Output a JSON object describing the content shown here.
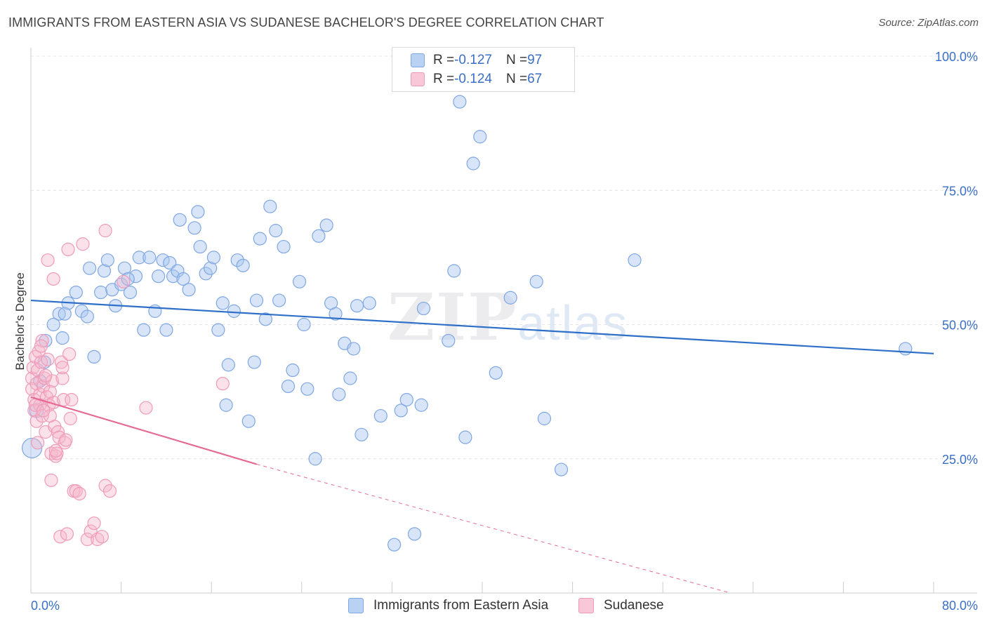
{
  "title": "IMMIGRANTS FROM EASTERN ASIA VS SUDANESE BACHELOR'S DEGREE CORRELATION CHART",
  "source": "Source: ZipAtlas.com",
  "watermark": {
    "zip": "ZIP",
    "atlas": "atlas"
  },
  "legend": {
    "items": [
      {
        "r_label": "R = ",
        "r_value": "-0.127",
        "n_label": "N = ",
        "n_value": "97",
        "color": "#a9c6f0"
      },
      {
        "r_label": "R = ",
        "r_value": "-0.124",
        "n_label": "N = ",
        "n_value": "67",
        "color": "#f6b6cb"
      }
    ]
  },
  "chart_data": {
    "type": "scatter",
    "xlabel": "",
    "ylabel": "Bachelor's Degree",
    "xlim": [
      0,
      80
    ],
    "ylim": [
      0,
      100
    ],
    "x_tick_labels": [
      "0.0%",
      "80.0%"
    ],
    "y_tick_labels": [
      "25.0%",
      "50.0%",
      "75.0%",
      "100.0%"
    ],
    "y_tick_values": [
      25,
      50,
      75,
      100
    ],
    "grid": true,
    "legend_position": "bottom",
    "series": [
      {
        "name": "Immigrants from Eastern Asia",
        "color": "#7fa7e3",
        "line_color": "#2e6fc9",
        "trend": {
          "x": [
            0,
            80
          ],
          "y": [
            54.5,
            44.6
          ]
        },
        "points": [
          [
            0.1,
            27.0,
            14
          ],
          [
            0.5,
            34.0,
            10
          ],
          [
            0.8,
            39.5,
            9
          ],
          [
            1.2,
            43.0,
            9
          ],
          [
            1.3,
            47.0,
            9
          ],
          [
            2.0,
            50.0,
            9
          ],
          [
            2.5,
            52.0,
            9
          ],
          [
            2.8,
            47.5,
            9
          ],
          [
            3.3,
            54.0,
            9
          ],
          [
            4.0,
            56.0,
            9
          ],
          [
            4.5,
            52.5,
            9
          ],
          [
            5.0,
            51.5,
            9
          ],
          [
            5.2,
            60.5,
            9
          ],
          [
            5.6,
            44.0,
            9
          ],
          [
            6.2,
            56.0,
            9
          ],
          [
            6.5,
            60.0,
            9
          ],
          [
            6.8,
            62.0,
            9
          ],
          [
            7.2,
            56.5,
            9
          ],
          [
            7.5,
            53.5,
            9
          ],
          [
            8.0,
            57.5,
            9
          ],
          [
            8.3,
            60.5,
            9
          ],
          [
            8.8,
            56.0,
            9
          ],
          [
            9.3,
            59.0,
            9
          ],
          [
            9.6,
            62.5,
            9
          ],
          [
            10.0,
            49.0,
            9
          ],
          [
            10.5,
            62.5,
            9
          ],
          [
            11.0,
            52.5,
            9
          ],
          [
            11.3,
            59.0,
            9
          ],
          [
            11.7,
            62.0,
            9
          ],
          [
            12.0,
            49.0,
            9
          ],
          [
            12.3,
            61.5,
            9
          ],
          [
            12.6,
            59.0,
            9
          ],
          [
            13.0,
            60.0,
            9
          ],
          [
            13.2,
            69.5,
            9
          ],
          [
            13.5,
            58.5,
            9
          ],
          [
            14.0,
            56.5,
            9
          ],
          [
            14.5,
            68.0,
            9
          ],
          [
            14.8,
            71.0,
            9
          ],
          [
            15.0,
            64.5,
            9
          ],
          [
            15.5,
            59.5,
            9
          ],
          [
            15.9,
            60.5,
            9
          ],
          [
            16.2,
            62.5,
            9
          ],
          [
            16.6,
            49.0,
            9
          ],
          [
            17.0,
            54.0,
            9
          ],
          [
            17.5,
            42.5,
            9
          ],
          [
            18.0,
            52.5,
            9
          ],
          [
            18.3,
            62.0,
            9
          ],
          [
            18.8,
            61.0,
            9
          ],
          [
            19.3,
            32.0,
            9
          ],
          [
            19.8,
            43.0,
            9
          ],
          [
            20.0,
            54.5,
            9
          ],
          [
            20.3,
            66.0,
            9
          ],
          [
            20.8,
            51.0,
            9
          ],
          [
            21.2,
            72.0,
            9
          ],
          [
            21.7,
            67.5,
            9
          ],
          [
            22.0,
            54.5,
            9
          ],
          [
            22.4,
            64.5,
            9
          ],
          [
            22.8,
            38.5,
            9
          ],
          [
            23.2,
            41.5,
            9
          ],
          [
            23.8,
            58.0,
            9
          ],
          [
            24.2,
            50.0,
            9
          ],
          [
            24.5,
            38.0,
            9
          ],
          [
            25.2,
            25.0,
            9
          ],
          [
            25.5,
            66.5,
            9
          ],
          [
            26.2,
            68.5,
            9
          ],
          [
            26.6,
            54.0,
            9
          ],
          [
            27.0,
            52.0,
            9
          ],
          [
            27.3,
            37.0,
            9
          ],
          [
            27.8,
            46.5,
            9
          ],
          [
            28.3,
            40.0,
            9
          ],
          [
            28.6,
            45.5,
            9
          ],
          [
            28.9,
            53.5,
            9
          ],
          [
            29.3,
            29.5,
            9
          ],
          [
            30.0,
            54.0,
            9
          ],
          [
            31.0,
            33.0,
            9
          ],
          [
            32.2,
            9.0,
            9
          ],
          [
            32.8,
            34.0,
            9
          ],
          [
            33.3,
            36.0,
            9
          ],
          [
            34.0,
            11.0,
            9
          ],
          [
            34.8,
            53.0,
            9
          ],
          [
            34.6,
            35.0,
            9
          ],
          [
            37.0,
            47.0,
            9
          ],
          [
            37.5,
            60.0,
            9
          ],
          [
            38.0,
            91.5,
            9
          ],
          [
            38.5,
            29.0,
            9
          ],
          [
            39.2,
            80.0,
            9
          ],
          [
            39.8,
            85.0,
            9
          ],
          [
            41.2,
            41.0,
            9
          ],
          [
            42.5,
            55.0,
            9
          ],
          [
            44.8,
            58.0,
            9
          ],
          [
            45.5,
            32.5,
            9
          ],
          [
            47.0,
            23.0,
            9
          ],
          [
            53.5,
            62.0,
            9
          ],
          [
            77.5,
            45.5,
            9
          ],
          [
            17.3,
            35.0,
            9
          ],
          [
            8.6,
            58.5,
            9
          ],
          [
            3.0,
            52.0,
            9
          ]
        ]
      },
      {
        "name": "Sudanese",
        "color": "#f09ab8",
        "line_color": "#e56b96",
        "trend": {
          "x": [
            0,
            20
          ],
          "y": [
            36.5,
            24.0
          ]
        },
        "trend_dashed": {
          "x": [
            20,
            62
          ],
          "y": [
            24.0,
            -1.0
          ]
        },
        "points": [
          [
            0.1,
            40.0,
            9
          ],
          [
            0.1,
            38.0,
            9
          ],
          [
            0.2,
            42.0,
            9
          ],
          [
            0.3,
            36.0,
            9
          ],
          [
            0.3,
            34.0,
            9
          ],
          [
            0.4,
            44.0,
            9
          ],
          [
            0.5,
            39.0,
            9
          ],
          [
            0.5,
            32.0,
            9
          ],
          [
            0.6,
            41.5,
            9
          ],
          [
            0.7,
            45.0,
            9
          ],
          [
            0.8,
            37.0,
            9
          ],
          [
            0.8,
            35.0,
            9
          ],
          [
            0.9,
            43.0,
            9
          ],
          [
            1.0,
            47.0,
            9
          ],
          [
            1.0,
            33.0,
            9
          ],
          [
            1.1,
            38.5,
            9
          ],
          [
            1.2,
            40.0,
            9
          ],
          [
            1.3,
            30.0,
            9
          ],
          [
            1.4,
            36.5,
            9
          ],
          [
            1.5,
            43.5,
            9
          ],
          [
            1.5,
            62.0,
            9
          ],
          [
            1.6,
            35.0,
            9
          ],
          [
            1.7,
            33.0,
            9
          ],
          [
            1.8,
            26.0,
            9
          ],
          [
            1.8,
            21.0,
            9
          ],
          [
            1.9,
            39.5,
            9
          ],
          [
            2.0,
            58.5,
            9
          ],
          [
            2.0,
            35.5,
            9
          ],
          [
            2.1,
            31.0,
            9
          ],
          [
            2.2,
            25.5,
            9
          ],
          [
            2.3,
            26.0,
            9
          ],
          [
            2.4,
            30.0,
            9
          ],
          [
            2.5,
            29.0,
            9
          ],
          [
            2.6,
            10.5,
            9
          ],
          [
            2.7,
            43.0,
            9
          ],
          [
            2.8,
            40.0,
            9
          ],
          [
            2.9,
            36.0,
            9
          ],
          [
            3.0,
            28.0,
            9
          ],
          [
            3.1,
            28.5,
            9
          ],
          [
            3.2,
            11.0,
            9
          ],
          [
            3.3,
            64.0,
            9
          ],
          [
            3.4,
            44.5,
            9
          ],
          [
            3.5,
            32.5,
            9
          ],
          [
            3.6,
            36.0,
            9
          ],
          [
            3.8,
            19.0,
            9
          ],
          [
            4.0,
            19.0,
            9
          ],
          [
            4.3,
            18.5,
            9
          ],
          [
            4.6,
            65.0,
            9
          ],
          [
            5.0,
            10.0,
            9
          ],
          [
            5.3,
            11.5,
            9
          ],
          [
            5.6,
            13.0,
            9
          ],
          [
            5.9,
            10.0,
            9
          ],
          [
            6.3,
            10.5,
            9
          ],
          [
            6.6,
            20.0,
            9
          ],
          [
            7.0,
            19.0,
            9
          ],
          [
            8.2,
            58.0,
            9
          ],
          [
            6.6,
            67.5,
            9
          ],
          [
            10.2,
            34.5,
            9
          ],
          [
            17.0,
            39.0,
            9
          ],
          [
            0.9,
            46.0,
            9
          ],
          [
            1.3,
            40.5,
            9
          ],
          [
            0.6,
            28.0,
            9
          ],
          [
            2.2,
            26.5,
            9
          ],
          [
            1.7,
            37.5,
            9
          ],
          [
            0.4,
            35.0,
            9
          ],
          [
            2.8,
            42.0,
            9
          ],
          [
            1.1,
            34.0,
            9
          ]
        ]
      }
    ]
  }
}
